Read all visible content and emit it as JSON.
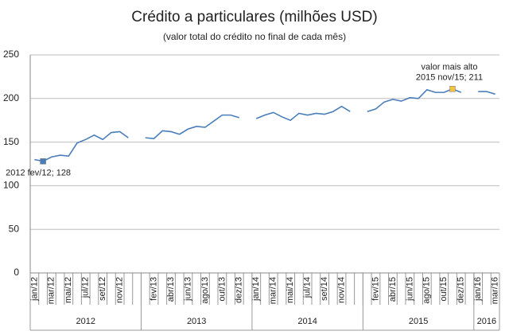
{
  "chart_data": {
    "type": "line",
    "title": "Crédito a particulares (milhões USD)",
    "subtitle": "(valor total do crédito no final de cada mês)",
    "categories": [
      "jan/12",
      null,
      "mar/12",
      null,
      "mai/12",
      null,
      "jul/12",
      null,
      "set/12",
      null,
      "nov/12",
      null,
      null,
      null,
      "fev/13",
      null,
      "abr/13",
      null,
      "jun/13",
      null,
      "ago/13",
      null,
      "out/13",
      null,
      "dez/13",
      null,
      "jan/14",
      null,
      "mar/14",
      null,
      "mai/14",
      null,
      "jul/14",
      null,
      "set/14",
      null,
      "nov/14",
      null,
      null,
      null,
      "fev/15",
      null,
      "abr/15",
      null,
      "jun/15",
      null,
      "ago/15",
      null,
      "out/15",
      null,
      "dez/15",
      null,
      "jan/16",
      null,
      "mar/16"
    ],
    "years": [
      "2012",
      "2013",
      "2014",
      "2015",
      "2016"
    ],
    "series": [
      {
        "name": "Crédito",
        "color": "#4a7ebb",
        "values": [
          130,
          128,
          133,
          135,
          134,
          149,
          153,
          158,
          153,
          161,
          162,
          155,
          null,
          155,
          154,
          163,
          162,
          159,
          165,
          168,
          167,
          174,
          181,
          181,
          178,
          null,
          177,
          181,
          184,
          179,
          175,
          183,
          181,
          183,
          182,
          185,
          191,
          185,
          null,
          185,
          188,
          196,
          199,
          197,
          201,
          200,
          210,
          207,
          207,
          211,
          207,
          null,
          208,
          208,
          205
        ]
      }
    ],
    "highlights": [
      {
        "index": 1,
        "color": "#4a7ebb",
        "label": "2012 fev/12; 128"
      },
      {
        "index": 49,
        "color": "#f5c342",
        "label": "2015 nov/15; 211",
        "note": "valor mais alto"
      }
    ],
    "ylim": [
      0,
      250
    ],
    "yticks": [
      0,
      50,
      100,
      150,
      200,
      250
    ],
    "grid": true
  }
}
